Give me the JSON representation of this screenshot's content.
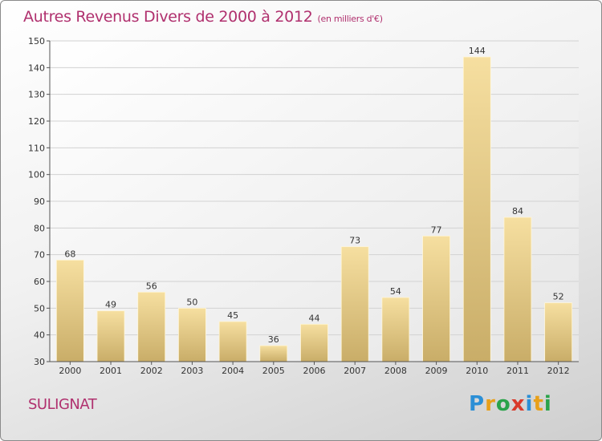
{
  "title": "Autres Revenus Divers de 2000 à 2012",
  "subtitle": "(en milliers d'€)",
  "location": "SULIGNAT",
  "logo_text": "Proxiti",
  "colors": {
    "title": "#b0306e",
    "bar_light": "#f6dfa0",
    "bar_dark": "#c9ad68"
  },
  "chart_data": {
    "type": "bar",
    "categories": [
      "2000",
      "2001",
      "2002",
      "2003",
      "2004",
      "2005",
      "2006",
      "2007",
      "2008",
      "2009",
      "2010",
      "2011",
      "2012"
    ],
    "values": [
      68,
      49,
      56,
      50,
      45,
      36,
      44,
      73,
      54,
      77,
      144,
      84,
      52
    ],
    "ylim": [
      30,
      150
    ],
    "yticks": [
      30,
      40,
      50,
      60,
      70,
      80,
      90,
      100,
      110,
      120,
      130,
      140,
      150
    ],
    "grid": true
  }
}
